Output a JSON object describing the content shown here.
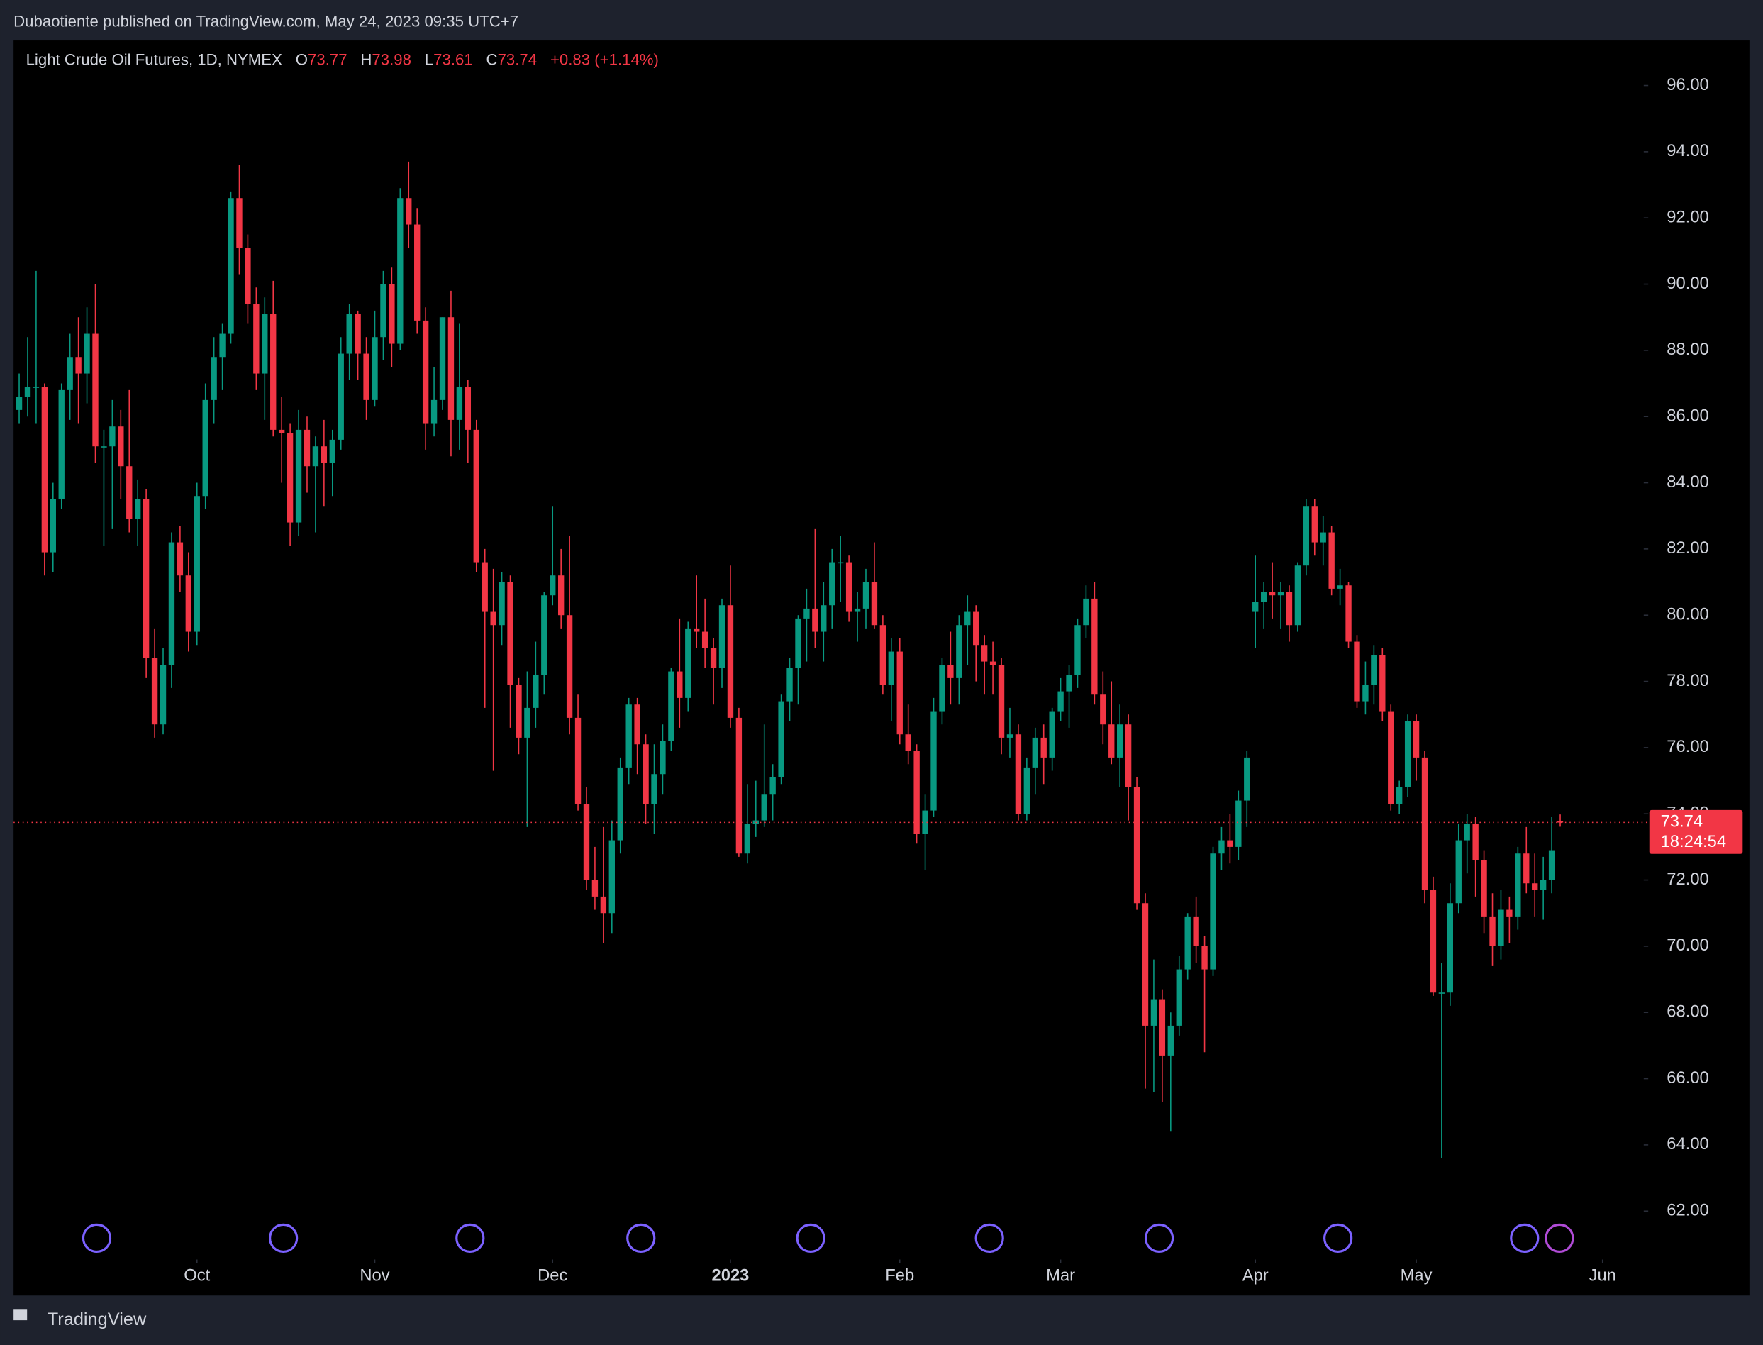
{
  "publisher": "Dubaotiente published on TradingView.com, May 24, 2023 09:35 UTC+7",
  "brand": "TradingView",
  "chart_data": {
    "type": "candlestick",
    "title": "Light Crude Oil Futures, 1D, NYMEX",
    "legend_keys": [
      "O",
      "H",
      "L",
      "C"
    ],
    "change": "+0.83 (+1.14%)",
    "countdown": "18:24:54",
    "up_color": "#089981",
    "down_color": "#f23645",
    "ylim": [
      59.45,
      97.36
    ],
    "yticks": [
      {
        "value": 62,
        "label": "62.00"
      },
      {
        "value": 64,
        "label": "64.00"
      },
      {
        "value": 66,
        "label": "66.00"
      },
      {
        "value": 68,
        "label": "68.00"
      },
      {
        "value": 70,
        "label": "70.00"
      },
      {
        "value": 72,
        "label": "72.00"
      },
      {
        "value": 74,
        "label": "74.00"
      },
      {
        "value": 76,
        "label": "76.00"
      },
      {
        "value": 78,
        "label": "78.00"
      },
      {
        "value": 80,
        "label": "80.00"
      },
      {
        "value": 82,
        "label": "82.00"
      },
      {
        "value": 84,
        "label": "84.00"
      },
      {
        "value": 86,
        "label": "86.00"
      },
      {
        "value": 88,
        "label": "88.00"
      },
      {
        "value": 90,
        "label": "90.00"
      },
      {
        "value": 92,
        "label": "92.00"
      },
      {
        "value": 94,
        "label": "94.00"
      },
      {
        "value": 96,
        "label": "96.00"
      }
    ],
    "xlim": [
      -0.66,
      191.6
    ],
    "xticks": [
      {
        "value": 21,
        "label": "Oct"
      },
      {
        "value": 42,
        "label": "Nov"
      },
      {
        "value": 63,
        "label": "Dec"
      },
      {
        "value": 84,
        "label": "2023"
      },
      {
        "value": 104,
        "label": "Feb"
      },
      {
        "value": 123,
        "label": "Mar"
      },
      {
        "value": 146,
        "label": "Apr"
      },
      {
        "value": 165,
        "label": "May"
      },
      {
        "value": 187,
        "label": "Jun"
      }
    ],
    "ohlc": [
      [
        86.2,
        87.3,
        85.8,
        86.6
      ],
      [
        86.6,
        88.4,
        86.0,
        86.9
      ],
      [
        86.9,
        90.4,
        85.8,
        86.9
      ],
      [
        86.9,
        87.0,
        81.2,
        81.9
      ],
      [
        81.9,
        84.0,
        81.3,
        83.5
      ],
      [
        83.5,
        87.0,
        83.2,
        86.8
      ],
      [
        86.8,
        88.5,
        85.9,
        87.8
      ],
      [
        87.8,
        89.0,
        85.8,
        87.3
      ],
      [
        87.3,
        89.3,
        86.4,
        88.5
      ],
      [
        88.5,
        90.0,
        84.6,
        85.1
      ],
      [
        85.1,
        85.6,
        82.1,
        85.1
      ],
      [
        85.1,
        86.5,
        82.6,
        85.7
      ],
      [
        85.7,
        86.2,
        83.5,
        84.5
      ],
      [
        84.5,
        86.8,
        82.5,
        82.9
      ],
      [
        82.9,
        84.1,
        82.1,
        83.5
      ],
      [
        83.5,
        83.8,
        78.1,
        78.7
      ],
      [
        78.7,
        79.6,
        76.3,
        76.7
      ],
      [
        76.7,
        79.0,
        76.4,
        78.5
      ],
      [
        78.5,
        82.5,
        77.8,
        82.2
      ],
      [
        82.2,
        82.7,
        80.7,
        81.2
      ],
      [
        81.2,
        81.9,
        78.9,
        79.5
      ],
      [
        79.5,
        84.0,
        79.1,
        83.6
      ],
      [
        83.6,
        87.0,
        83.2,
        86.5
      ],
      [
        86.5,
        88.4,
        85.8,
        87.8
      ],
      [
        87.8,
        88.8,
        86.8,
        88.5
      ],
      [
        88.5,
        92.8,
        88.2,
        92.6
      ],
      [
        92.6,
        93.6,
        90.3,
        91.1
      ],
      [
        91.1,
        91.5,
        88.8,
        89.4
      ],
      [
        89.4,
        89.9,
        86.8,
        87.3
      ],
      [
        87.3,
        89.6,
        85.9,
        89.1
      ],
      [
        89.1,
        90.1,
        85.4,
        85.6
      ],
      [
        85.6,
        86.6,
        84.0,
        85.5
      ],
      [
        85.5,
        85.8,
        82.1,
        82.8
      ],
      [
        82.8,
        86.2,
        82.4,
        85.6
      ],
      [
        85.6,
        86.0,
        83.7,
        84.5
      ],
      [
        84.5,
        85.4,
        82.5,
        85.1
      ],
      [
        85.1,
        85.9,
        83.3,
        84.6
      ],
      [
        84.6,
        85.6,
        83.6,
        85.3
      ],
      [
        85.3,
        88.4,
        85.0,
        87.9
      ],
      [
        87.9,
        89.4,
        87.1,
        89.1
      ],
      [
        89.1,
        89.2,
        87.1,
        87.9
      ],
      [
        87.9,
        88.4,
        85.9,
        86.5
      ],
      [
        86.5,
        89.2,
        86.3,
        88.4
      ],
      [
        88.4,
        90.4,
        87.7,
        90.0
      ],
      [
        90.0,
        90.5,
        87.5,
        88.2
      ],
      [
        88.2,
        92.9,
        88.0,
        92.6
      ],
      [
        92.6,
        93.7,
        91.1,
        91.8
      ],
      [
        91.8,
        92.3,
        88.5,
        88.9
      ],
      [
        88.9,
        89.3,
        85.0,
        85.8
      ],
      [
        85.8,
        87.5,
        85.4,
        86.5
      ],
      [
        86.5,
        89.0,
        86.2,
        89.0
      ],
      [
        89.0,
        89.8,
        84.8,
        85.9
      ],
      [
        85.9,
        88.8,
        85.0,
        86.9
      ],
      [
        86.9,
        87.1,
        84.6,
        85.6
      ],
      [
        85.6,
        85.9,
        81.3,
        81.6
      ],
      [
        81.6,
        82.0,
        77.2,
        80.1
      ],
      [
        80.1,
        81.4,
        75.3,
        79.7
      ],
      [
        79.7,
        81.3,
        79.1,
        81.0
      ],
      [
        81.0,
        81.2,
        76.6,
        77.9
      ],
      [
        77.9,
        78.1,
        75.8,
        76.3
      ],
      [
        76.3,
        78.3,
        73.6,
        77.2
      ],
      [
        77.2,
        79.2,
        76.6,
        78.2
      ],
      [
        78.2,
        80.7,
        77.6,
        80.6
      ],
      [
        80.6,
        83.3,
        80.3,
        81.2
      ],
      [
        81.2,
        82.0,
        79.6,
        80.0
      ],
      [
        80.0,
        82.4,
        76.4,
        76.9
      ],
      [
        76.9,
        77.6,
        74.1,
        74.3
      ],
      [
        74.3,
        74.8,
        71.7,
        72.0
      ],
      [
        72.0,
        73.0,
        71.1,
        71.5
      ],
      [
        71.5,
        73.6,
        70.1,
        71.0
      ],
      [
        71.0,
        73.8,
        70.4,
        73.2
      ],
      [
        73.2,
        75.7,
        72.8,
        75.4
      ],
      [
        75.4,
        77.5,
        74.9,
        77.3
      ],
      [
        77.3,
        77.5,
        75.2,
        76.1
      ],
      [
        76.1,
        76.4,
        73.7,
        74.3
      ],
      [
        74.3,
        76.1,
        73.4,
        75.2
      ],
      [
        75.2,
        76.7,
        74.6,
        76.2
      ],
      [
        76.2,
        78.4,
        75.9,
        78.3
      ],
      [
        78.3,
        79.9,
        76.6,
        77.5
      ],
      [
        77.5,
        79.8,
        77.1,
        79.6
      ],
      [
        79.6,
        81.2,
        79.0,
        79.5
      ],
      [
        79.5,
        80.5,
        78.4,
        79.0
      ],
      [
        79.0,
        79.3,
        77.3,
        78.4
      ],
      [
        78.4,
        80.5,
        77.8,
        80.3
      ],
      [
        80.3,
        81.5,
        76.6,
        76.9
      ],
      [
        76.9,
        77.2,
        72.7,
        72.8
      ],
      [
        72.8,
        74.9,
        72.5,
        73.7
      ],
      [
        73.7,
        75.0,
        73.3,
        73.8
      ],
      [
        73.8,
        76.7,
        73.6,
        74.6
      ],
      [
        74.6,
        75.5,
        73.8,
        75.1
      ],
      [
        75.1,
        77.6,
        74.9,
        77.4
      ],
      [
        77.4,
        78.7,
        76.8,
        78.4
      ],
      [
        78.4,
        80.0,
        77.3,
        79.9
      ],
      [
        79.9,
        80.8,
        78.6,
        80.2
      ],
      [
        80.2,
        82.6,
        79.0,
        79.5
      ],
      [
        79.5,
        81.0,
        78.6,
        80.3
      ],
      [
        80.3,
        82.0,
        79.6,
        81.6
      ],
      [
        81.6,
        82.4,
        80.4,
        81.6
      ],
      [
        81.6,
        81.8,
        79.8,
        80.1
      ],
      [
        80.1,
        80.7,
        79.2,
        80.2
      ],
      [
        80.2,
        81.4,
        79.6,
        81.0
      ],
      [
        81.0,
        82.2,
        79.6,
        79.7
      ],
      [
        79.7,
        80.0,
        77.6,
        77.9
      ],
      [
        77.9,
        79.3,
        76.8,
        78.9
      ],
      [
        78.9,
        79.3,
        76.1,
        76.4
      ],
      [
        76.4,
        77.3,
        75.5,
        75.9
      ],
      [
        75.9,
        76.1,
        73.1,
        73.4
      ],
      [
        73.4,
        74.6,
        72.3,
        74.1
      ],
      [
        74.1,
        77.5,
        73.9,
        77.1
      ],
      [
        77.1,
        78.7,
        76.7,
        78.5
      ],
      [
        78.5,
        79.5,
        77.3,
        78.1
      ],
      [
        78.1,
        80.0,
        77.3,
        79.7
      ],
      [
        79.7,
        80.6,
        78.5,
        80.1
      ],
      [
        80.1,
        80.3,
        78.0,
        79.1
      ],
      [
        79.1,
        79.4,
        77.6,
        78.6
      ],
      [
        78.6,
        79.2,
        77.6,
        78.5
      ],
      [
        78.5,
        78.7,
        75.8,
        76.3
      ],
      [
        76.3,
        77.2,
        75.7,
        76.4
      ],
      [
        76.4,
        76.7,
        73.8,
        74.0
      ],
      [
        74.0,
        75.7,
        73.8,
        75.4
      ],
      [
        75.4,
        76.6,
        74.6,
        76.3
      ],
      [
        76.3,
        76.7,
        74.9,
        75.7
      ],
      [
        75.7,
        77.2,
        75.3,
        77.1
      ],
      [
        77.1,
        78.1,
        76.8,
        77.7
      ],
      [
        77.7,
        78.5,
        76.6,
        78.2
      ],
      [
        78.2,
        79.9,
        77.8,
        79.7
      ],
      [
        79.7,
        80.9,
        79.3,
        80.5
      ],
      [
        80.5,
        81.0,
        77.3,
        77.6
      ],
      [
        77.6,
        78.3,
        76.1,
        76.7
      ],
      [
        76.7,
        78.0,
        75.5,
        75.7
      ],
      [
        75.7,
        77.3,
        74.8,
        76.7
      ],
      [
        76.7,
        77.0,
        73.8,
        74.8
      ],
      [
        74.8,
        75.1,
        71.1,
        71.3
      ],
      [
        71.3,
        71.6,
        65.7,
        67.6
      ],
      [
        67.6,
        69.6,
        65.6,
        68.4
      ],
      [
        68.4,
        68.7,
        65.3,
        66.7
      ],
      [
        66.7,
        68.0,
        64.4,
        67.6
      ],
      [
        67.6,
        69.7,
        67.3,
        69.3
      ],
      [
        69.3,
        71.0,
        69.0,
        70.9
      ],
      [
        70.9,
        71.5,
        69.5,
        70.0
      ],
      [
        70.0,
        70.3,
        66.8,
        69.3
      ],
      [
        69.3,
        73.0,
        69.1,
        72.8
      ],
      [
        72.8,
        73.6,
        72.3,
        73.2
      ],
      [
        73.2,
        74.0,
        72.5,
        73.0
      ],
      [
        73.0,
        74.7,
        72.6,
        74.4
      ],
      [
        74.4,
        75.9,
        73.6,
        75.7
      ],
      [
        80.1,
        81.8,
        79.0,
        80.4
      ],
      [
        80.4,
        81.0,
        79.6,
        80.7
      ],
      [
        80.7,
        81.6,
        79.9,
        80.6
      ],
      [
        80.6,
        81.0,
        79.6,
        80.7
      ],
      [
        80.7,
        80.9,
        79.2,
        79.7
      ],
      [
        79.7,
        81.6,
        79.5,
        81.5
      ],
      [
        81.5,
        83.5,
        81.2,
        83.3
      ],
      [
        83.3,
        83.5,
        81.8,
        82.2
      ],
      [
        82.2,
        83.0,
        81.5,
        82.5
      ],
      [
        82.5,
        82.7,
        80.6,
        80.8
      ],
      [
        80.8,
        81.4,
        80.3,
        80.9
      ],
      [
        80.9,
        81.0,
        79.0,
        79.2
      ],
      [
        79.2,
        79.4,
        77.2,
        77.4
      ],
      [
        77.4,
        78.6,
        77.0,
        77.9
      ],
      [
        77.9,
        79.1,
        77.3,
        78.8
      ],
      [
        78.8,
        79.0,
        76.8,
        77.1
      ],
      [
        77.1,
        77.3,
        74.1,
        74.3
      ],
      [
        74.3,
        75.0,
        74.0,
        74.8
      ],
      [
        74.8,
        77.0,
        74.5,
        76.8
      ],
      [
        76.8,
        77.0,
        75.0,
        75.7
      ],
      [
        75.7,
        75.9,
        71.3,
        71.7
      ],
      [
        71.7,
        72.1,
        68.5,
        68.6
      ],
      [
        68.6,
        69.5,
        63.6,
        68.6
      ],
      [
        68.6,
        71.9,
        68.2,
        71.3
      ],
      [
        71.3,
        73.7,
        71.0,
        73.2
      ],
      [
        73.2,
        74.0,
        72.2,
        73.7
      ],
      [
        73.7,
        73.9,
        71.5,
        72.6
      ],
      [
        72.6,
        72.9,
        70.4,
        70.9
      ],
      [
        70.9,
        71.6,
        69.4,
        70.0
      ],
      [
        70.0,
        71.7,
        69.6,
        71.1
      ],
      [
        71.1,
        71.5,
        70.1,
        70.9
      ],
      [
        70.9,
        73.0,
        70.5,
        72.8
      ],
      [
        72.8,
        73.6,
        71.6,
        71.9
      ],
      [
        71.9,
        72.8,
        70.9,
        71.7
      ],
      [
        71.7,
        72.7,
        70.8,
        72.0
      ],
      [
        72.0,
        73.9,
        71.6,
        72.9
      ],
      [
        73.77,
        73.98,
        73.61,
        73.74
      ]
    ]
  }
}
